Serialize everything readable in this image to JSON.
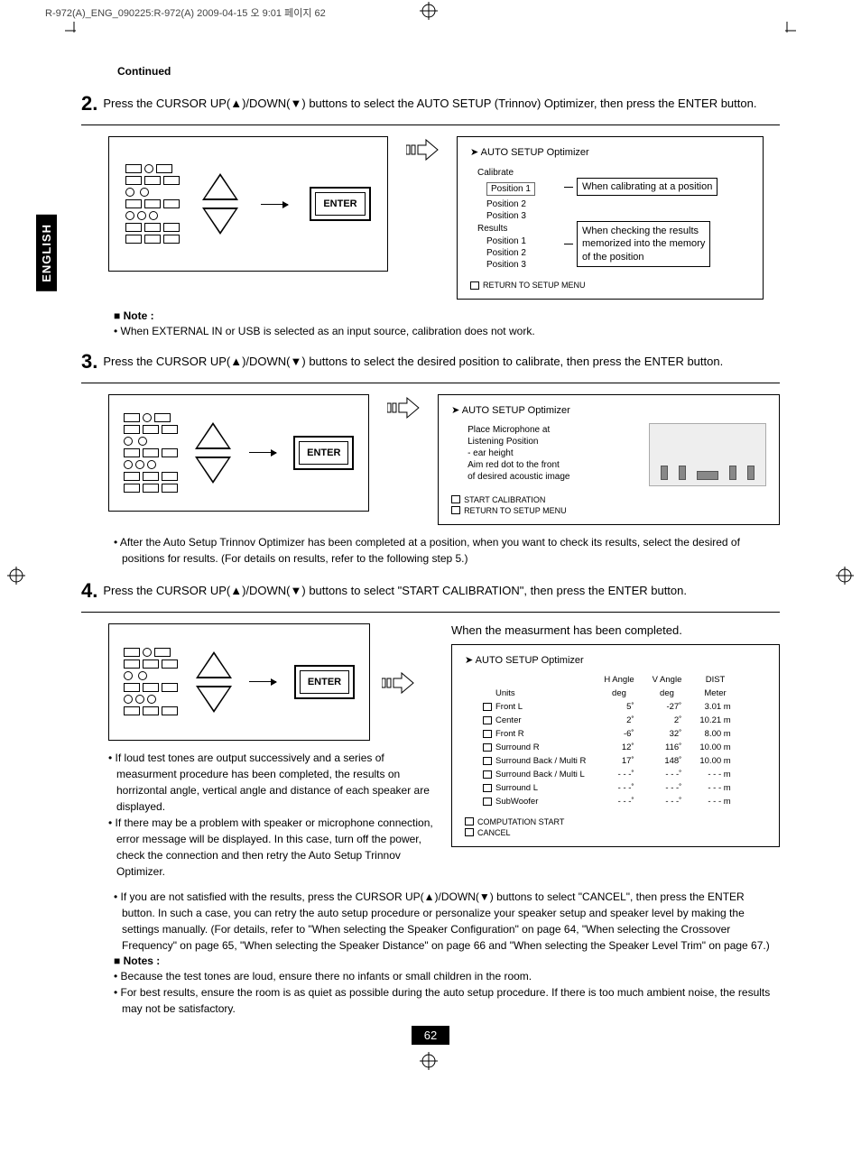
{
  "header": "R-972(A)_ENG_090225:R-972(A)  2009-04-15  오  9:01  페이지 62",
  "lang_tab": "ENGLISH",
  "continued": "Continued",
  "steps": {
    "s2": {
      "num": "2.",
      "text": "Press the CURSOR UP(▲)/DOWN(▼) buttons to select the AUTO SETUP (Trinnov) Optimizer, then press the ENTER button."
    },
    "s3": {
      "num": "3.",
      "text": "Press the CURSOR UP(▲)/DOWN(▼) buttons to select the desired position to calibrate, then press the ENTER button."
    },
    "s4": {
      "num": "4.",
      "text": "Press the CURSOR UP(▲)/DOWN(▼) buttons to select \"START CALIBRATION\", then press the ENTER button."
    }
  },
  "enter_label": "ENTER",
  "note2_title": "Note :",
  "note2_body": "When EXTERNAL IN or USB is selected as an input source, calibration does not work.",
  "panel1": {
    "title": "AUTO SETUP Optimizer",
    "calibrate": "Calibrate",
    "p1": "Position 1",
    "p2": "Position 2",
    "p3": "Position 3",
    "results": "Results",
    "callout_a": "When calibrating at a position",
    "callout_b1": "When checking the results",
    "callout_b2": "memorized into the memory",
    "callout_b3": "of the position",
    "return": "RETURN TO SETUP MENU"
  },
  "panel2": {
    "title": "AUTO SETUP Optimizer",
    "l1": "Place Microphone at",
    "l2": "Listening Position",
    "l3": "- ear height",
    "l4": "Aim red dot to the front",
    "l5": "of desired acoustic image",
    "start": "START CALIBRATION",
    "return": "RETURN TO SETUP MENU"
  },
  "after3": "After the Auto Setup Trinnov Optimizer has been completed at a position, when you want to check its results, select the desired of positions for results. (For details on results, refer to the following step 5.)",
  "meas_done": "When the measurment has been completed.",
  "panel3": {
    "title": "AUTO SETUP Optimizer",
    "h_angle": "H Angle",
    "v_angle": "V Angle",
    "dist": "DIST",
    "units": "Units",
    "u_deg": "deg",
    "u_m": "Meter",
    "rows": [
      {
        "n": "Front L",
        "h": "5˚",
        "v": "-27˚",
        "d": "3.01 m"
      },
      {
        "n": "Center",
        "h": "2˚",
        "v": "2˚",
        "d": "10.21 m"
      },
      {
        "n": "Front R",
        "h": "-6˚",
        "v": "32˚",
        "d": "8.00 m"
      },
      {
        "n": "Surround R",
        "h": "12˚",
        "v": "116˚",
        "d": "10.00 m"
      },
      {
        "n": "Surround Back / Multi R",
        "h": "17˚",
        "v": "148˚",
        "d": "10.00 m"
      },
      {
        "n": "Surround Back / Multi L",
        "h": "- - -˚",
        "v": "- - -˚",
        "d": "- - -  m"
      },
      {
        "n": "Surround L",
        "h": "- - -˚",
        "v": "- - -˚",
        "d": "- - -  m"
      },
      {
        "n": "SubWoofer",
        "h": "- - -˚",
        "v": "- - -˚",
        "d": "- - -  m"
      }
    ],
    "comp": "COMPUTATION START",
    "cancel": "CANCEL"
  },
  "bul4a": "If loud test tones are output successively and a series of measurment procedure has been completed, the results on horrizontal angle, vertical angle and distance of each speaker are displayed.",
  "bul4b": "If there may be a problem with speaker or microphone connection, error message will be displayed. In this case, turn off the power, check the connection and then retry the Auto Setup Trinnov Optimizer.",
  "bul4c": "If you are not satisfied with the results, press the CURSOR UP(▲)/DOWN(▼) buttons to select \"CANCEL\", then press the ENTER button. In such a case, you can retry the auto setup procedure or personalize your speaker setup and speaker level by making the settings manually. (For details, refer to \"When selecting the Speaker Configuration\" on page 64, \"When selecting the Crossover Frequency\" on page 65, \"When selecting the Speaker Distance\" on page 66 and \"When selecting the Speaker Level Trim\" on page 67.)",
  "notes_title": "Notes :",
  "notes_b1": "Because the test tones are loud, ensure there no infants or small children in the room.",
  "notes_b2": "For best results, ensure the room is as quiet as possible during the auto setup procedure. If there is too much ambient noise, the results may not be satisfactory.",
  "pagenum": "62"
}
